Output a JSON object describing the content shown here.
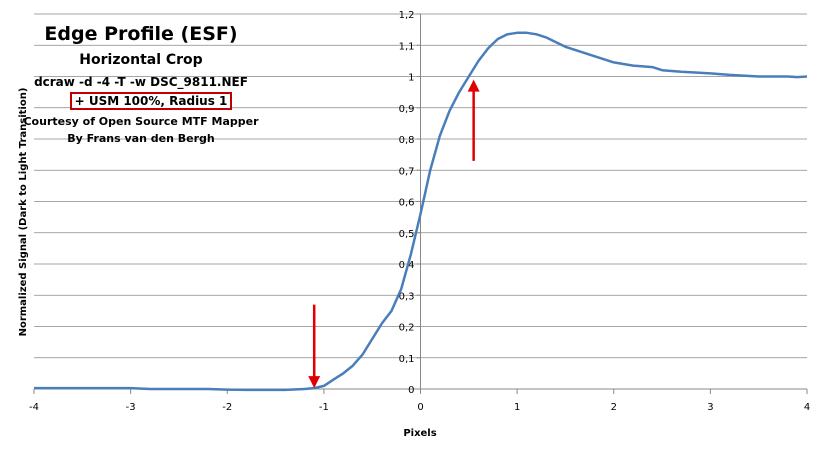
{
  "chart_data": {
    "type": "line",
    "title": "Edge Profile (ESF)",
    "subtitle": "Horizontal Crop",
    "annotations": [
      "dcraw -d -4 -T -w DSC_9811.NEF",
      "+ USM 100%, Radius 1",
      "Courtesy of Open Source MTF Mapper",
      "By Frans van den Bergh"
    ],
    "xlabel": "Pixels",
    "ylabel": "Normalized Signal (Dark to Light Transition)",
    "xlim": [
      -4,
      4
    ],
    "ylim": [
      0,
      1.2
    ],
    "xticks": [
      "-4",
      "-3",
      "-2",
      "-1",
      "0",
      "1",
      "2",
      "3",
      "4"
    ],
    "yticks": [
      "0",
      "0,1",
      "0,2",
      "0,3",
      "0,4",
      "0,5",
      "0,6",
      "0,7",
      "0,8",
      "0,9",
      "1",
      "1,1",
      "1,2"
    ],
    "grid": true,
    "line_color": "#4a7ebb",
    "arrow_color": "#e00000",
    "series": [
      {
        "x": [
          -4.0,
          -3.5,
          -3.0,
          -2.8,
          -2.5,
          -2.2,
          -2.0,
          -1.8,
          -1.6,
          -1.4,
          -1.2,
          -1.1,
          -1.0,
          -0.9,
          -0.8,
          -0.7,
          -0.6,
          -0.5,
          -0.4,
          -0.3,
          -0.2,
          -0.1,
          0.0,
          0.1,
          0.2,
          0.3,
          0.4,
          0.5,
          0.6,
          0.7,
          0.8,
          0.9,
          1.0,
          1.1,
          1.2,
          1.3,
          1.4,
          1.5,
          1.6,
          1.7,
          1.8,
          1.9,
          2.0,
          2.2,
          2.4,
          2.5,
          2.7,
          3.0,
          3.2,
          3.5,
          3.7,
          3.8,
          3.9,
          4.0
        ],
        "y": [
          0.003,
          0.003,
          0.003,
          0.0,
          0.0,
          0.0,
          -0.002,
          -0.003,
          -0.003,
          -0.003,
          0.0,
          0.003,
          0.01,
          0.03,
          0.05,
          0.075,
          0.11,
          0.16,
          0.21,
          0.25,
          0.32,
          0.43,
          0.56,
          0.7,
          0.81,
          0.89,
          0.95,
          1.0,
          1.05,
          1.09,
          1.12,
          1.135,
          1.14,
          1.14,
          1.135,
          1.125,
          1.11,
          1.095,
          1.085,
          1.075,
          1.065,
          1.055,
          1.045,
          1.035,
          1.03,
          1.02,
          1.015,
          1.01,
          1.005,
          1.0,
          1.0,
          1.0,
          0.998,
          1.0
        ]
      }
    ],
    "arrows": [
      {
        "x": -1.1,
        "y_from": 0.27,
        "y_to": 0.003,
        "direction": "down"
      },
      {
        "x": 0.55,
        "y_from": 0.73,
        "y_to": 0.99,
        "direction": "up"
      }
    ]
  }
}
